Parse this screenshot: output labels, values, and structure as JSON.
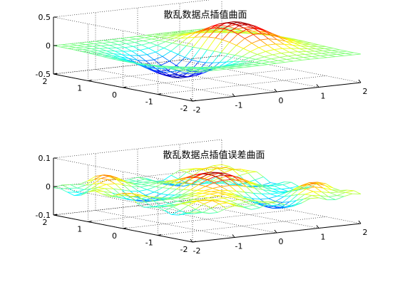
{
  "chart_data": [
    {
      "type": "surface3d",
      "title": "散乱数据点插值曲面",
      "xlabel": "",
      "ylabel": "",
      "zlabel": "",
      "xlim": [
        -2,
        2
      ],
      "ylim": [
        -2,
        2
      ],
      "zlim": [
        -0.5,
        0.5
      ],
      "x_ticks": [
        "-2",
        "-1",
        "0",
        "1",
        "2"
      ],
      "y_ticks": [
        "-2",
        "-1",
        "0",
        "1",
        "2"
      ],
      "z_ticks": [
        "-0.5",
        "0",
        "0.5"
      ],
      "grid": true,
      "colormap": "jet",
      "function": "x*exp(-x^2-y^2)"
    },
    {
      "type": "surface3d",
      "title": "散乱数据点插值误差曲面",
      "xlabel": "",
      "ylabel": "",
      "zlabel": "",
      "xlim": [
        -2,
        2
      ],
      "ylim": [
        -2,
        2
      ],
      "zlim": [
        -0.1,
        0.1
      ],
      "x_ticks": [
        "-2",
        "-1",
        "0",
        "1",
        "2"
      ],
      "y_ticks": [
        "-2",
        "-1",
        "0",
        "1",
        "2"
      ],
      "z_ticks": [
        "-0.1",
        "0",
        "0.1"
      ],
      "grid": true,
      "colormap": "jet",
      "function": "interpolation error, small oscillations within ±0.05"
    }
  ]
}
